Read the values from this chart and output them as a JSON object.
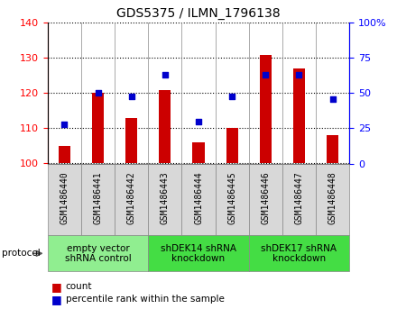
{
  "title": "GDS5375 / ILMN_1796138",
  "samples": [
    "GSM1486440",
    "GSM1486441",
    "GSM1486442",
    "GSM1486443",
    "GSM1486444",
    "GSM1486445",
    "GSM1486446",
    "GSM1486447",
    "GSM1486448"
  ],
  "counts": [
    105,
    120,
    113,
    121,
    106,
    110,
    131,
    127,
    108
  ],
  "percentile_ranks": [
    28,
    50,
    48,
    63,
    30,
    48,
    63,
    63,
    46
  ],
  "ylim_left": [
    100,
    140
  ],
  "ylim_right": [
    0,
    100
  ],
  "yticks_left": [
    100,
    110,
    120,
    130,
    140
  ],
  "yticks_right": [
    0,
    25,
    50,
    75,
    100
  ],
  "bar_color": "#cc0000",
  "dot_color": "#0000cc",
  "bar_bottom": 100,
  "groups": [
    {
      "label": "empty vector\nshRNA control",
      "start": 0,
      "end": 3,
      "color": "#90ee90"
    },
    {
      "label": "shDEK14 shRNA\nknockdown",
      "start": 3,
      "end": 6,
      "color": "#44dd44"
    },
    {
      "label": "shDEK17 shRNA\nknockdown",
      "start": 6,
      "end": 9,
      "color": "#44dd44"
    }
  ],
  "legend_count_label": "count",
  "legend_percentile_label": "percentile rank within the sample",
  "protocol_label": "protocol",
  "background_color": "#ffffff",
  "plot_bg_color": "#ffffff",
  "xticklabel_bg": "#d8d8d8",
  "title_fontsize": 10,
  "ytick_label_fontsize": 8,
  "xtick_label_fontsize": 7,
  "group_label_fontsize": 7.5,
  "legend_fontsize": 7.5
}
